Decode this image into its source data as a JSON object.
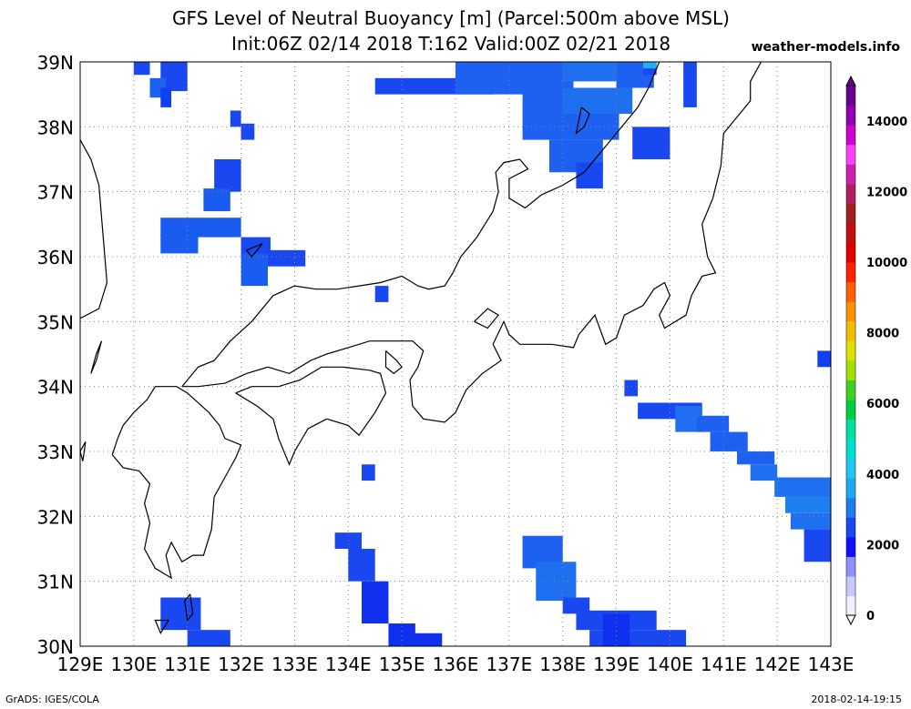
{
  "title_line1": "GFS Level of Neutral Buoyancy [m] (Parcel:500m above MSL)",
  "title_line2": "Init:06Z 02/14 2018 T:162 Valid:00Z 02/21 2018",
  "site": "weather-models.info",
  "footer_left": "GrADS: IGES/COLA",
  "footer_right": "2018-02-14-19:15",
  "map": {
    "lon_range": [
      129,
      143
    ],
    "lat_range": [
      30,
      39
    ],
    "lat_labels": [
      "30N",
      "31N",
      "32N",
      "33N",
      "34N",
      "35N",
      "36N",
      "37N",
      "38N",
      "39N"
    ],
    "lon_labels": [
      "129E",
      "130E",
      "131E",
      "132E",
      "133E",
      "134E",
      "135E",
      "136E",
      "137E",
      "138E",
      "139E",
      "140E",
      "141E",
      "142E",
      "143E"
    ],
    "grid_dotted": true
  },
  "colorbar": {
    "range": [
      0,
      15000
    ],
    "labels": [
      "0",
      "2000",
      "4000",
      "6000",
      "8000",
      "10000",
      "12000",
      "14000"
    ],
    "colors": [
      "#f0f0ff",
      "#c8c8ff",
      "#9090ff",
      "#1010ff",
      "#1a48f0",
      "#1e7cf0",
      "#1ea8f0",
      "#20c8f0",
      "#00e0d0",
      "#00e0a0",
      "#00d040",
      "#40d020",
      "#a0e000",
      "#e0e000",
      "#f0c000",
      "#ff9000",
      "#ff6000",
      "#ff2000",
      "#e00000",
      "#c01010",
      "#a02020",
      "#b02060",
      "#d020b0",
      "#ff40ff",
      "#d000d0",
      "#9000b0",
      "#6a0090"
    ]
  },
  "fields": [
    {
      "lon": 130.0,
      "lat": 38.8,
      "w": 0.3,
      "h": 0.25,
      "color": "#1a48f0"
    },
    {
      "lon": 130.5,
      "lat": 38.55,
      "w": 0.5,
      "h": 0.5,
      "color": "#1a48f0"
    },
    {
      "lon": 130.3,
      "lat": 38.45,
      "w": 0.3,
      "h": 0.3,
      "color": "#1e60f0"
    },
    {
      "lon": 130.5,
      "lat": 38.3,
      "w": 0.2,
      "h": 0.3,
      "color": "#1040f0"
    },
    {
      "lon": 131.8,
      "lat": 38.0,
      "w": 0.2,
      "h": 0.25,
      "color": "#1a48f0"
    },
    {
      "lon": 132.0,
      "lat": 37.8,
      "w": 0.25,
      "h": 0.25,
      "color": "#1a48f0"
    },
    {
      "lon": 131.5,
      "lat": 37.0,
      "w": 0.5,
      "h": 0.5,
      "color": "#1a48f0"
    },
    {
      "lon": 131.3,
      "lat": 36.7,
      "w": 0.5,
      "h": 0.35,
      "color": "#1a5cf0"
    },
    {
      "lon": 130.5,
      "lat": 36.3,
      "w": 1.5,
      "h": 0.3,
      "color": "#1a5cf0"
    },
    {
      "lon": 130.5,
      "lat": 36.05,
      "w": 0.7,
      "h": 0.3,
      "color": "#1a5cf0"
    },
    {
      "lon": 132.0,
      "lat": 36.0,
      "w": 0.55,
      "h": 0.3,
      "color": "#1a48f0"
    },
    {
      "lon": 132.0,
      "lat": 35.55,
      "w": 0.5,
      "h": 0.5,
      "color": "#1a5cf0"
    },
    {
      "lon": 132.5,
      "lat": 35.85,
      "w": 0.7,
      "h": 0.25,
      "color": "#1a48f0"
    },
    {
      "lon": 134.5,
      "lat": 35.3,
      "w": 0.25,
      "h": 0.25,
      "color": "#1a48f0"
    },
    {
      "lon": 134.5,
      "lat": 38.5,
      "w": 2.2,
      "h": 0.25,
      "color": "#1a48f0"
    },
    {
      "lon": 136.0,
      "lat": 38.5,
      "w": 2.2,
      "h": 0.5,
      "color": "#1e60f0"
    },
    {
      "lon": 137.25,
      "lat": 37.8,
      "w": 1.8,
      "h": 0.8,
      "color": "#1e60f0"
    },
    {
      "lon": 138.0,
      "lat": 38.7,
      "w": 1.5,
      "h": 0.3,
      "color": "#1e70f0"
    },
    {
      "lon": 139.0,
      "lat": 38.6,
      "w": 0.7,
      "h": 0.4,
      "color": "#1e60f0"
    },
    {
      "lon": 139.5,
      "lat": 38.8,
      "w": 0.25,
      "h": 0.2,
      "color": "#1a48f0"
    },
    {
      "lon": 139.5,
      "lat": 38.9,
      "w": 0.25,
      "h": 0.1,
      "color": "#20b0f0"
    },
    {
      "lon": 138.0,
      "lat": 38.2,
      "w": 1.3,
      "h": 0.4,
      "color": "#1e70f0"
    },
    {
      "lon": 137.75,
      "lat": 37.3,
      "w": 1.0,
      "h": 0.5,
      "color": "#1e60f0"
    },
    {
      "lon": 138.25,
      "lat": 37.05,
      "w": 0.5,
      "h": 0.4,
      "color": "#1a48f0"
    },
    {
      "lon": 139.3,
      "lat": 37.5,
      "w": 0.7,
      "h": 0.5,
      "color": "#1a48f0"
    },
    {
      "lon": 140.25,
      "lat": 38.3,
      "w": 0.25,
      "h": 0.7,
      "color": "#1a48f0"
    },
    {
      "lon": 139.15,
      "lat": 33.85,
      "w": 0.25,
      "h": 0.25,
      "color": "#1a48f0"
    },
    {
      "lon": 139.4,
      "lat": 33.5,
      "w": 1.2,
      "h": 0.25,
      "color": "#1a48f0"
    },
    {
      "lon": 140.1,
      "lat": 33.3,
      "w": 0.5,
      "h": 0.4,
      "color": "#1e70f0"
    },
    {
      "lon": 140.5,
      "lat": 33.3,
      "w": 0.6,
      "h": 0.25,
      "color": "#1e60f0"
    },
    {
      "lon": 140.75,
      "lat": 33.0,
      "w": 0.7,
      "h": 0.3,
      "color": "#1e60f0"
    },
    {
      "lon": 141.25,
      "lat": 32.8,
      "w": 0.7,
      "h": 0.2,
      "color": "#1e60f0"
    },
    {
      "lon": 141.5,
      "lat": 32.55,
      "w": 0.5,
      "h": 0.25,
      "color": "#1e70f0"
    },
    {
      "lon": 141.95,
      "lat": 32.3,
      "w": 1.05,
      "h": 0.3,
      "color": "#1e70f0"
    },
    {
      "lon": 142.15,
      "lat": 32.05,
      "w": 0.85,
      "h": 0.25,
      "color": "#1e80f0"
    },
    {
      "lon": 142.25,
      "lat": 31.8,
      "w": 0.75,
      "h": 0.25,
      "color": "#1e70f0"
    },
    {
      "lon": 142.5,
      "lat": 31.3,
      "w": 0.5,
      "h": 0.5,
      "color": "#1a48f0"
    },
    {
      "lon": 142.75,
      "lat": 34.3,
      "w": 0.5,
      "h": 0.25,
      "color": "#1040f0"
    },
    {
      "lon": 134.25,
      "lat": 32.55,
      "w": 0.25,
      "h": 0.25,
      "color": "#1a48f0"
    },
    {
      "lon": 133.75,
      "lat": 31.5,
      "w": 0.5,
      "h": 0.25,
      "color": "#1a48f0"
    },
    {
      "lon": 134.0,
      "lat": 31.0,
      "w": 0.5,
      "h": 0.5,
      "color": "#1a48f0"
    },
    {
      "lon": 134.25,
      "lat": 30.35,
      "w": 0.5,
      "h": 0.65,
      "color": "#1030f0"
    },
    {
      "lon": 134.75,
      "lat": 30.0,
      "w": 0.5,
      "h": 0.35,
      "color": "#1030f0"
    },
    {
      "lon": 135.0,
      "lat": 30.0,
      "w": 0.75,
      "h": 0.2,
      "color": "#1030f0"
    },
    {
      "lon": 137.25,
      "lat": 31.2,
      "w": 0.75,
      "h": 0.5,
      "color": "#1e60f0"
    },
    {
      "lon": 137.5,
      "lat": 30.7,
      "w": 0.75,
      "h": 0.6,
      "color": "#1e70f0"
    },
    {
      "lon": 138.0,
      "lat": 30.5,
      "w": 0.5,
      "h": 0.25,
      "color": "#1a48f0"
    },
    {
      "lon": 138.25,
      "lat": 30.25,
      "w": 1.5,
      "h": 0.3,
      "color": "#1a48f0"
    },
    {
      "lon": 138.5,
      "lat": 30.0,
      "w": 1.8,
      "h": 0.25,
      "color": "#1a48f0"
    },
    {
      "lon": 138.75,
      "lat": 30.0,
      "w": 0.5,
      "h": 0.5,
      "color": "#1030f0"
    },
    {
      "lon": 130.5,
      "lat": 30.25,
      "w": 0.75,
      "h": 0.5,
      "color": "#1a48f0"
    },
    {
      "lon": 131.0,
      "lat": 30.0,
      "w": 0.8,
      "h": 0.25,
      "color": "#1a48f0"
    }
  ],
  "coastlines": [
    [
      [
        129.0,
        37.8
      ],
      [
        129.2,
        37.5
      ],
      [
        129.35,
        37.1
      ],
      [
        129.4,
        36.6
      ],
      [
        129.45,
        36.1
      ],
      [
        129.5,
        35.6
      ],
      [
        129.35,
        35.2
      ],
      [
        129.0,
        35.05
      ]
    ],
    [
      [
        130.4,
        34.0
      ],
      [
        130.25,
        33.8
      ],
      [
        130.0,
        33.6
      ],
      [
        129.8,
        33.4
      ],
      [
        129.7,
        33.2
      ],
      [
        129.6,
        32.95
      ],
      [
        129.8,
        32.75
      ],
      [
        130.1,
        32.7
      ],
      [
        130.3,
        32.5
      ],
      [
        130.2,
        32.2
      ],
      [
        130.3,
        31.9
      ],
      [
        130.2,
        31.5
      ],
      [
        130.4,
        31.2
      ],
      [
        130.7,
        31.05
      ],
      [
        130.6,
        31.4
      ],
      [
        130.7,
        31.6
      ],
      [
        130.9,
        31.3
      ],
      [
        131.1,
        31.4
      ],
      [
        131.3,
        31.4
      ],
      [
        131.45,
        31.8
      ],
      [
        131.5,
        32.3
      ],
      [
        131.7,
        32.6
      ],
      [
        131.9,
        32.9
      ],
      [
        132.0,
        33.1
      ],
      [
        131.7,
        33.2
      ],
      [
        131.6,
        33.4
      ],
      [
        131.4,
        33.6
      ],
      [
        131.0,
        33.9
      ],
      [
        130.8,
        34.0
      ],
      [
        130.4,
        34.0
      ]
    ],
    [
      [
        130.9,
        34.0
      ],
      [
        131.2,
        34.3
      ],
      [
        131.5,
        34.4
      ],
      [
        131.8,
        34.7
      ],
      [
        132.2,
        35.0
      ],
      [
        132.6,
        35.4
      ],
      [
        133.0,
        35.55
      ],
      [
        133.4,
        35.5
      ],
      [
        133.8,
        35.5
      ],
      [
        134.2,
        35.55
      ],
      [
        134.6,
        35.6
      ],
      [
        135.0,
        35.7
      ],
      [
        135.3,
        35.55
      ],
      [
        135.5,
        35.5
      ],
      [
        135.8,
        35.55
      ],
      [
        135.95,
        35.75
      ],
      [
        136.1,
        36.0
      ],
      [
        136.4,
        36.3
      ],
      [
        136.7,
        36.7
      ],
      [
        136.8,
        37.0
      ],
      [
        136.75,
        37.3
      ],
      [
        136.9,
        37.45
      ],
      [
        137.2,
        37.5
      ],
      [
        137.35,
        37.35
      ],
      [
        137.0,
        37.2
      ],
      [
        137.0,
        36.9
      ],
      [
        137.3,
        36.75
      ],
      [
        137.6,
        36.95
      ],
      [
        138.0,
        37.1
      ],
      [
        138.4,
        37.3
      ],
      [
        138.6,
        37.5
      ],
      [
        138.9,
        37.8
      ],
      [
        139.1,
        38.0
      ],
      [
        139.4,
        38.3
      ],
      [
        139.6,
        38.6
      ],
      [
        139.8,
        39.0
      ]
    ],
    [
      [
        130.9,
        34.0
      ],
      [
        131.2,
        34.0
      ],
      [
        131.7,
        34.05
      ],
      [
        132.1,
        34.2
      ],
      [
        132.5,
        34.3
      ],
      [
        132.9,
        34.2
      ],
      [
        133.3,
        34.4
      ],
      [
        133.6,
        34.5
      ],
      [
        134.0,
        34.6
      ],
      [
        134.4,
        34.7
      ],
      [
        134.8,
        34.7
      ],
      [
        135.2,
        34.7
      ],
      [
        135.4,
        34.55
      ],
      [
        135.3,
        34.3
      ],
      [
        135.15,
        34.1
      ],
      [
        135.2,
        33.7
      ],
      [
        135.4,
        33.5
      ],
      [
        135.8,
        33.45
      ],
      [
        136.0,
        33.6
      ],
      [
        136.2,
        33.95
      ],
      [
        136.5,
        34.2
      ],
      [
        136.85,
        34.4
      ],
      [
        136.7,
        34.65
      ],
      [
        136.9,
        35.0
      ],
      [
        137.0,
        34.8
      ],
      [
        137.2,
        34.65
      ],
      [
        137.8,
        34.65
      ],
      [
        138.2,
        34.6
      ],
      [
        138.3,
        34.8
      ],
      [
        138.6,
        35.1
      ],
      [
        138.8,
        34.65
      ],
      [
        139.0,
        34.75
      ],
      [
        139.15,
        35.1
      ],
      [
        139.5,
        35.25
      ],
      [
        139.7,
        35.5
      ],
      [
        139.9,
        35.6
      ],
      [
        140.0,
        35.4
      ],
      [
        139.8,
        35.1
      ],
      [
        139.9,
        34.9
      ],
      [
        140.3,
        35.1
      ],
      [
        140.4,
        35.4
      ],
      [
        140.6,
        35.7
      ],
      [
        140.85,
        35.75
      ],
      [
        140.7,
        36.0
      ],
      [
        140.6,
        36.5
      ],
      [
        140.8,
        36.9
      ],
      [
        140.95,
        37.4
      ],
      [
        141.0,
        37.9
      ],
      [
        141.5,
        38.4
      ],
      [
        141.5,
        38.7
      ],
      [
        141.7,
        39.0
      ]
    ],
    [
      [
        131.9,
        33.9
      ],
      [
        132.3,
        33.7
      ],
      [
        132.6,
        33.5
      ],
      [
        132.7,
        33.2
      ],
      [
        132.9,
        32.8
      ],
      [
        133.0,
        33.0
      ],
      [
        133.25,
        33.35
      ],
      [
        133.6,
        33.5
      ],
      [
        134.0,
        33.4
      ],
      [
        134.2,
        33.25
      ],
      [
        134.5,
        33.6
      ],
      [
        134.7,
        33.9
      ],
      [
        134.6,
        34.2
      ],
      [
        134.4,
        34.25
      ],
      [
        133.9,
        34.3
      ],
      [
        133.5,
        34.3
      ],
      [
        133.1,
        34.1
      ],
      [
        132.7,
        34.0
      ],
      [
        132.2,
        34.0
      ],
      [
        131.9,
        33.9
      ]
    ],
    [
      [
        134.7,
        34.55
      ],
      [
        134.9,
        34.4
      ],
      [
        135.0,
        34.3
      ],
      [
        134.85,
        34.2
      ],
      [
        134.7,
        34.3
      ],
      [
        134.7,
        34.55
      ]
    ],
    [
      [
        138.35,
        38.3
      ],
      [
        138.5,
        38.2
      ],
      [
        138.4,
        38.0
      ],
      [
        138.25,
        37.9
      ],
      [
        138.3,
        38.1
      ],
      [
        138.35,
        38.3
      ]
    ],
    [
      [
        136.35,
        35.0
      ],
      [
        136.6,
        35.2
      ],
      [
        136.8,
        35.1
      ],
      [
        136.6,
        34.9
      ],
      [
        136.35,
        35.0
      ]
    ],
    [
      [
        130.65,
        30.4
      ],
      [
        130.5,
        30.2
      ],
      [
        130.4,
        30.4
      ],
      [
        130.65,
        30.4
      ]
    ],
    [
      [
        131.05,
        30.8
      ],
      [
        131.1,
        30.5
      ],
      [
        131.0,
        30.4
      ],
      [
        130.95,
        30.7
      ],
      [
        131.05,
        30.8
      ]
    ],
    [
      [
        132.1,
        36.1
      ],
      [
        132.4,
        36.2
      ],
      [
        132.2,
        36.0
      ],
      [
        132.1,
        36.1
      ]
    ],
    [
      [
        129.4,
        34.7
      ],
      [
        129.3,
        34.5
      ],
      [
        129.2,
        34.2
      ],
      [
        129.3,
        34.4
      ],
      [
        129.4,
        34.7
      ]
    ],
    [
      [
        129.0,
        33.0
      ],
      [
        129.1,
        33.15
      ],
      [
        129.05,
        32.85
      ],
      [
        129.0,
        33.0
      ]
    ]
  ]
}
